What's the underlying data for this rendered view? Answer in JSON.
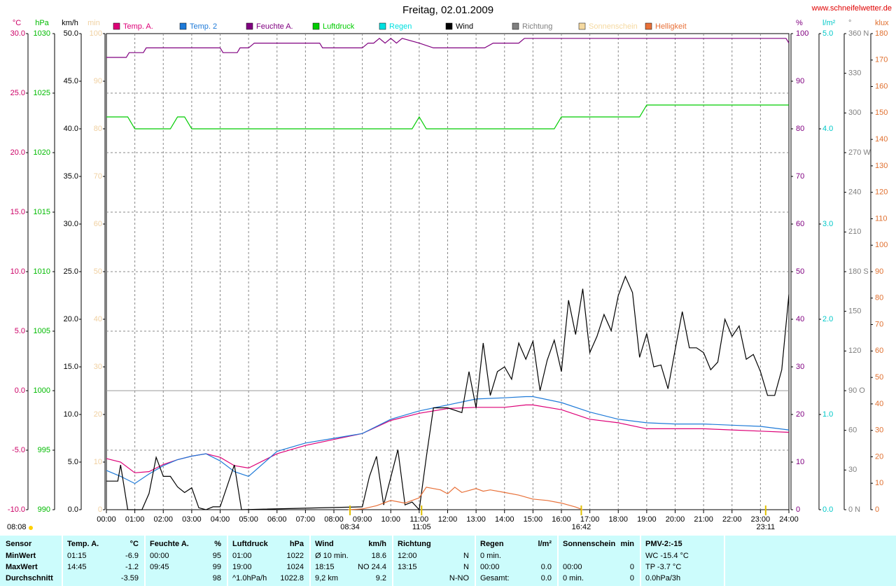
{
  "chart_data": {
    "type": "line",
    "title": "Freitag, 02.01.2009",
    "source": "www.schneifelwetter.de",
    "xlim": [
      0,
      24
    ],
    "xticks": [
      {
        "value": 0,
        "label": "00:00"
      },
      {
        "value": 1,
        "label": "01:00"
      },
      {
        "value": 2,
        "label": "02:00"
      },
      {
        "value": 3,
        "label": "03:00"
      },
      {
        "value": 4,
        "label": "04:00"
      },
      {
        "value": 5,
        "label": "05:00"
      },
      {
        "value": 6,
        "label": "06:00"
      },
      {
        "value": 7,
        "label": "07:00"
      },
      {
        "value": 8,
        "label": "08:00"
      },
      {
        "value": 9,
        "label": "09:00"
      },
      {
        "value": 10,
        "label": "10:00"
      },
      {
        "value": 11,
        "label": "11:00"
      },
      {
        "value": 12,
        "label": "12:00"
      },
      {
        "value": 13,
        "label": "13:00"
      },
      {
        "value": 14,
        "label": "14:00"
      },
      {
        "value": 15,
        "label": "15:00"
      },
      {
        "value": 16,
        "label": "16:00"
      },
      {
        "value": 17,
        "label": "17:00"
      },
      {
        "value": 18,
        "label": "18:00"
      },
      {
        "value": 19,
        "label": "19:00"
      },
      {
        "value": 20,
        "label": "20:00"
      },
      {
        "value": 21,
        "label": "21:00"
      },
      {
        "value": 22,
        "label": "22:00"
      },
      {
        "value": 23,
        "label": "23:00"
      },
      {
        "value": 24,
        "label": "24:00"
      }
    ],
    "grid": true,
    "axes": [
      {
        "unit": "°C",
        "color": "#cc0066",
        "side": "left",
        "lim": [
          -10,
          30
        ],
        "ticks": [
          {
            "value": -10,
            "label": "-10.0"
          },
          {
            "value": -5,
            "label": "-5.0"
          },
          {
            "value": 0,
            "label": "0.0"
          },
          {
            "value": 5,
            "label": "5.0"
          },
          {
            "value": 10,
            "label": "10.0"
          },
          {
            "value": 15,
            "label": "15.0"
          },
          {
            "value": 20,
            "label": "20.0"
          },
          {
            "value": 25,
            "label": "25.0"
          },
          {
            "value": 30,
            "label": "30.0"
          }
        ]
      },
      {
        "unit": "hPa",
        "color": "#00bb00",
        "side": "left",
        "lim": [
          990,
          1030
        ],
        "ticks": [
          990,
          995,
          1000,
          1005,
          1010,
          1015,
          1020,
          1025,
          1030
        ]
      },
      {
        "unit": "km/h",
        "color": "#000000",
        "side": "left",
        "lim": [
          0,
          50
        ],
        "ticks": [
          {
            "value": 0,
            "label": "0.0"
          },
          {
            "value": 5,
            "label": "5.0"
          },
          {
            "value": 10,
            "label": "10.0"
          },
          {
            "value": 15,
            "label": "15.0"
          },
          {
            "value": 20,
            "label": "20.0"
          },
          {
            "value": 25,
            "label": "25.0"
          },
          {
            "value": 30,
            "label": "30.0"
          },
          {
            "value": 35,
            "label": "35.0"
          },
          {
            "value": 40,
            "label": "40.0"
          },
          {
            "value": 45,
            "label": "45.0"
          },
          {
            "value": 50,
            "label": "50.0"
          }
        ]
      },
      {
        "unit": "min",
        "color": "#f0d0a0",
        "side": "left",
        "lim": [
          0,
          100
        ],
        "ticks": [
          0,
          10,
          20,
          30,
          40,
          50,
          60,
          70,
          80,
          90,
          100
        ]
      },
      {
        "unit": "%",
        "color": "#800080",
        "side": "right",
        "lim": [
          0,
          100
        ],
        "ticks": [
          0,
          10,
          20,
          30,
          40,
          50,
          60,
          70,
          80,
          90,
          100
        ]
      },
      {
        "unit": "l/m²",
        "color": "#00c8c8",
        "side": "right",
        "lim": [
          0,
          5
        ],
        "ticks": [
          {
            "value": 0,
            "label": "0.0"
          },
          {
            "value": 1,
            "label": "1.0"
          },
          {
            "value": 2,
            "label": "2.0"
          },
          {
            "value": 3,
            "label": "3.0"
          },
          {
            "value": 4,
            "label": "4.0"
          },
          {
            "value": 5,
            "label": "5.0"
          }
        ]
      },
      {
        "unit": "°",
        "color": "#808080",
        "side": "right",
        "lim": [
          0,
          360
        ],
        "ticks": [
          {
            "value": 0,
            "label": "0   N"
          },
          30,
          60,
          {
            "value": 90,
            "label": "90  O"
          },
          120,
          150,
          {
            "value": 180,
            "label": "180 S"
          },
          210,
          240,
          {
            "value": 270,
            "label": "270 W"
          },
          300,
          330,
          {
            "value": 360,
            "label": "360 N"
          }
        ]
      },
      {
        "unit": "klux",
        "color": "#e07030",
        "side": "right",
        "lim": [
          0,
          180
        ],
        "ticks": [
          0,
          10,
          20,
          30,
          40,
          50,
          60,
          70,
          80,
          90,
          100,
          110,
          120,
          130,
          140,
          150,
          160,
          170,
          180
        ]
      }
    ],
    "series": [
      {
        "name": "Temp. A.",
        "color": "#dd0077",
        "axis": "°C",
        "x": [
          0,
          0.5,
          1,
          1.5,
          2,
          2.5,
          3,
          3.5,
          4,
          4.5,
          5,
          6,
          7,
          8,
          9,
          10,
          11,
          12,
          13,
          14,
          14.75,
          15,
          16,
          17,
          18,
          19,
          20,
          21,
          22,
          23,
          24
        ],
        "values": [
          -5.7,
          -6,
          -6.9,
          -6.8,
          -6.2,
          -5.8,
          -5.5,
          -5.3,
          -5.6,
          -6.3,
          -6.5,
          -5.3,
          -4.6,
          -4.1,
          -3.6,
          -2.5,
          -1.9,
          -1.5,
          -1.4,
          -1.4,
          -1.2,
          -1.2,
          -1.6,
          -2.4,
          -2.7,
          -3.2,
          -3.2,
          -3.2,
          -3.3,
          -3.4,
          -3.5
        ]
      },
      {
        "name": "Temp. 2",
        "color": "#1e7ad8",
        "axis": "°C",
        "x": [
          0,
          0.5,
          1,
          1.5,
          2,
          2.5,
          3,
          3.5,
          4,
          4.5,
          5,
          6,
          7,
          8,
          9,
          10,
          11,
          12,
          13,
          14,
          14.75,
          15,
          16,
          17,
          18,
          19,
          20,
          21,
          22,
          23,
          24
        ],
        "values": [
          -6.7,
          -7.2,
          -7.8,
          -7,
          -6.3,
          -5.8,
          -5.5,
          -5.3,
          -5.9,
          -6.8,
          -7.2,
          -5.1,
          -4.4,
          -4,
          -3.6,
          -2.4,
          -1.7,
          -1.2,
          -0.7,
          -0.6,
          -0.5,
          -0.5,
          -1,
          -1.8,
          -2.4,
          -2.7,
          -2.8,
          -2.8,
          -2.9,
          -3,
          -3.3
        ]
      },
      {
        "name": "Feuchte A.",
        "color": "#800080",
        "axis": "%",
        "x": [
          0,
          0.7,
          0.8,
          1.3,
          1.4,
          4.0,
          4.1,
          4.6,
          4.7,
          5.0,
          5.2,
          7.5,
          7.6,
          9.0,
          9.2,
          9.4,
          9.6,
          9.8,
          10.0,
          10.2,
          10.4,
          11.0,
          11.5,
          13.3,
          13.6,
          14.5,
          14.7,
          23.9,
          24
        ],
        "values": [
          95,
          95,
          96,
          96,
          97,
          97,
          96,
          96,
          97,
          97,
          98,
          98,
          97,
          97,
          98,
          98,
          99,
          98,
          99,
          98,
          99,
          98,
          97,
          97,
          98,
          98,
          99,
          99,
          98
        ]
      },
      {
        "name": "Luftdruck",
        "color": "#00cc00",
        "axis": "hPa",
        "x": [
          0,
          0.75,
          1,
          2.25,
          2.5,
          2.75,
          3,
          10.75,
          11,
          11.25,
          15.75,
          16,
          18.75,
          19,
          24
        ],
        "values": [
          1023,
          1023,
          1022,
          1022,
          1023,
          1023,
          1022,
          1022,
          1023,
          1022,
          1022,
          1023,
          1023,
          1024,
          1024
        ]
      },
      {
        "name": "Regen",
        "color": "#00e0e0"
      },
      {
        "name": "Wind",
        "color": "#000000",
        "axis": "km/h",
        "x": [
          0,
          0.4,
          0.5,
          0.75,
          1.25,
          1.5,
          1.75,
          2,
          2.25,
          2.5,
          2.75,
          3,
          3.25,
          3.5,
          3.75,
          4,
          4.5,
          4.75,
          9,
          9.25,
          9.5,
          9.75,
          10.25,
          10.5,
          10.75,
          11,
          11.25,
          11.5,
          12,
          12.5,
          12.75,
          13,
          13.25,
          13.5,
          13.75,
          14,
          14.25,
          14.5,
          14.75,
          15,
          15.25,
          15.5,
          15.75,
          16,
          16.25,
          16.5,
          16.75,
          17,
          17.25,
          17.5,
          17.75,
          18,
          18.25,
          18.5,
          18.75,
          19,
          19.25,
          19.5,
          19.75,
          20,
          20.25,
          20.5,
          20.75,
          21,
          21.25,
          21.5,
          21.75,
          22,
          22.25,
          22.5,
          22.75,
          23,
          23.25,
          23.5,
          23.75,
          24
        ],
        "values": [
          3,
          3,
          4.7,
          0,
          0,
          1.7,
          5.5,
          3.5,
          3.5,
          2.4,
          1.8,
          2.3,
          0.2,
          0,
          0.3,
          0.3,
          4.7,
          0,
          0.3,
          3.5,
          5.6,
          0.5,
          6.3,
          0.5,
          0.8,
          0,
          5.5,
          10.7,
          10.7,
          10.2,
          14.5,
          10.7,
          17.5,
          12,
          14.5,
          15,
          13.7,
          17.5,
          15.8,
          17.7,
          12.5,
          15.7,
          17.8,
          14.5,
          22,
          18.4,
          23.2,
          16.5,
          18.2,
          20.5,
          18.8,
          22.5,
          24.5,
          22.8,
          16,
          18.5,
          15,
          15.2,
          12.7,
          16.8,
          20.8,
          17,
          17,
          16.5,
          14.7,
          15.5,
          20,
          18.2,
          19.3,
          15.8,
          16.3,
          14.5,
          12,
          12,
          14.7,
          22.6
        ]
      },
      {
        "name": "Richtung",
        "color": "#808080"
      },
      {
        "name": "Sonnenschein",
        "color": "#f5d9a0"
      },
      {
        "name": "Helligkeit",
        "color": "#e87038",
        "axis": "klux",
        "x": [
          8.5,
          9,
          9.5,
          10,
          10.5,
          11,
          11.25,
          11.75,
          12,
          12.25,
          12.5,
          13,
          13.25,
          13.5,
          14,
          14.5,
          15,
          15.5,
          16,
          16.5,
          16.75
        ],
        "values": [
          0,
          0.3,
          1.5,
          3.5,
          2.5,
          4.5,
          8.5,
          7.5,
          6,
          8.5,
          6.5,
          8,
          7,
          7.5,
          6.5,
          5.5,
          4,
          3.5,
          2.5,
          1,
          0
        ]
      }
    ],
    "annotations": [
      {
        "text": "08:34",
        "x": 8.5667
      },
      {
        "text": "11:05",
        "x": 11.0833
      },
      {
        "text": "16:42",
        "x": 16.7
      },
      {
        "text": "23:11",
        "x": 23.1833
      }
    ],
    "day_length": "08:08"
  },
  "table": [
    {
      "header": {
        "l": "Sensor"
      },
      "rows": [
        {
          "l": "MinWert"
        },
        {
          "l": "MaxWert"
        },
        {
          "l": "Durchschnitt"
        }
      ]
    },
    {
      "header": {
        "l": "Temp. A.",
        "r": "°C"
      },
      "rows": [
        {
          "l": "01:15",
          "r": "-6.9"
        },
        {
          "l": "14:45",
          "r": "-1.2"
        },
        {
          "r": "-3.59"
        }
      ]
    },
    {
      "header": {
        "l": "Feuchte A.",
        "r": "%"
      },
      "rows": [
        {
          "l": "00:00",
          "r": "95"
        },
        {
          "l": "09:45",
          "r": "99"
        },
        {
          "r": "98"
        }
      ]
    },
    {
      "header": {
        "l": "Luftdruck",
        "r": "hPa"
      },
      "rows": [
        {
          "l": "01:00",
          "r": "1022"
        },
        {
          "l": "19:00",
          "r": "1024"
        },
        {
          "l": "^1.0hPa/h",
          "r": "1022.8"
        }
      ]
    },
    {
      "header": {
        "l": "Wind",
        "r": "km/h"
      },
      "rows": [
        {
          "l": "Ø 10 min.",
          "r": "18.6"
        },
        {
          "l": "18:15",
          "r": "NO 24.4"
        },
        {
          "l": "9,2 km",
          "r": "9.2"
        }
      ]
    },
    {
      "header": {
        "l": "Richtung"
      },
      "rows": [
        {
          "l": "12:00",
          "r": "N"
        },
        {
          "l": "13:15",
          "r": "N"
        },
        {
          "r": "N-NO"
        }
      ]
    },
    {
      "header": {
        "l": "Regen",
        "r": "l/m²"
      },
      "rows": [
        {
          "l": "0 min."
        },
        {
          "l": "00:00",
          "r": "0.0"
        },
        {
          "l": "Gesamt:",
          "r": "0.0"
        }
      ]
    },
    {
      "header": {
        "l": "Sonnenschein",
        "r": "min"
      },
      "rows": [
        {},
        {
          "l": "00:00",
          "r": "0"
        },
        {
          "l": "0 min.",
          "r": "0"
        }
      ]
    },
    {
      "header": {
        "l": "PMV-2:-15"
      },
      "rows": [
        {
          "l": "WC -15.4 °C"
        },
        {
          "l": "TP -3.7 °C"
        },
        {
          "l": "0.0hPa/3h"
        }
      ]
    }
  ]
}
